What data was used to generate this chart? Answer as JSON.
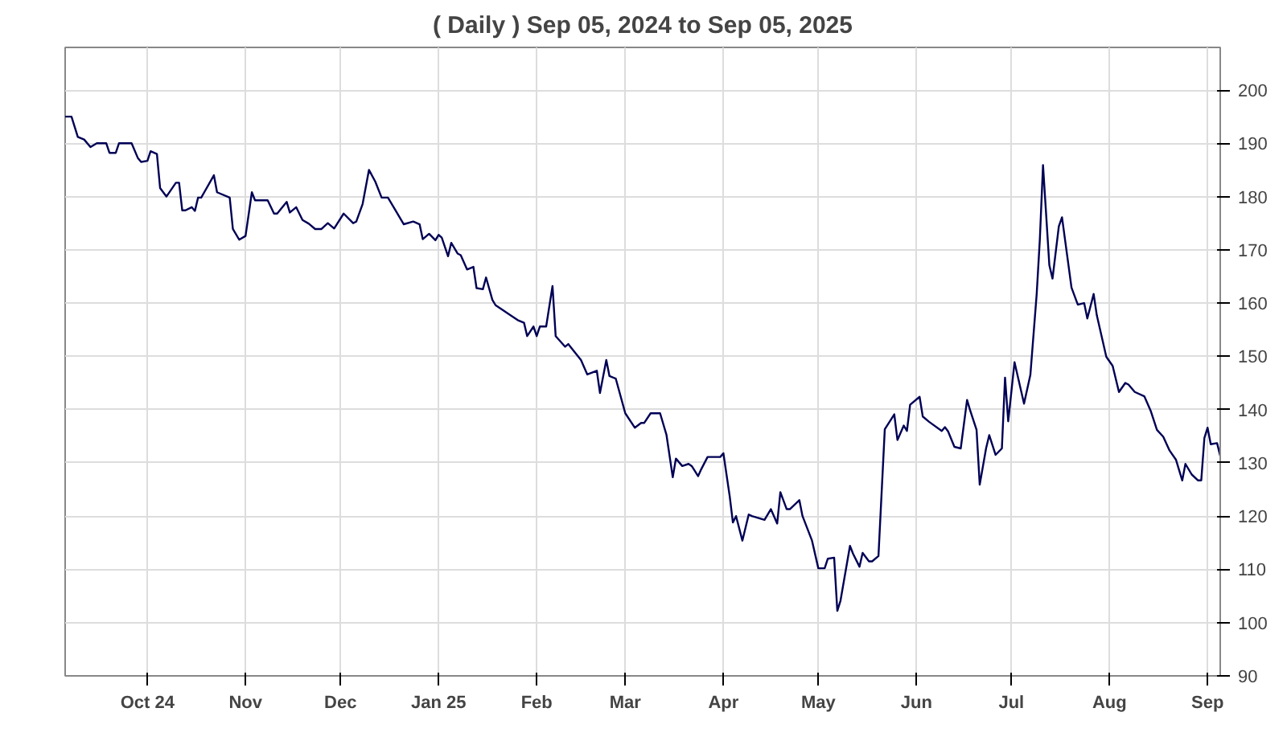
{
  "chart_data": {
    "type": "line",
    "title": "( Daily ) Sep 05, 2024 to Sep 05, 2025",
    "x": [
      "2024-09-05",
      "2024-09-07",
      "2024-09-09",
      "2024-09-11",
      "2024-09-13",
      "2024-09-15",
      "2024-09-18",
      "2024-09-19",
      "2024-09-21",
      "2024-09-22",
      "2024-09-26",
      "2024-09-28",
      "2024-09-29",
      "2024-10-01",
      "2024-10-02",
      "2024-10-04",
      "2024-10-05",
      "2024-10-07",
      "2024-10-10",
      "2024-10-11",
      "2024-10-12",
      "2024-10-13",
      "2024-10-15",
      "2024-10-16",
      "2024-10-17",
      "2024-10-18",
      "2024-10-22",
      "2024-10-23",
      "2024-10-27",
      "2024-10-28",
      "2024-10-30",
      "2024-11-01",
      "2024-11-03",
      "2024-11-04",
      "2024-11-08",
      "2024-11-10",
      "2024-11-11",
      "2024-11-14",
      "2024-11-15",
      "2024-11-17",
      "2024-11-19",
      "2024-11-21",
      "2024-11-23",
      "2024-11-25",
      "2024-11-27",
      "2024-11-29",
      "2024-12-02",
      "2024-12-05",
      "2024-12-06",
      "2024-12-08",
      "2024-12-10",
      "2024-12-12",
      "2024-12-14",
      "2024-12-16",
      "2024-12-18",
      "2024-12-21",
      "2024-12-24",
      "2024-12-26",
      "2024-12-27",
      "2024-12-29",
      "2024-12-31",
      "2025-01-01",
      "2025-01-02",
      "2025-01-04",
      "2025-01-05",
      "2025-01-07",
      "2025-01-08",
      "2025-01-10",
      "2025-01-12",
      "2025-01-13",
      "2025-01-15",
      "2025-01-16",
      "2025-01-18",
      "2025-01-19",
      "2025-01-24",
      "2025-01-26",
      "2025-01-28",
      "2025-01-29",
      "2025-01-31",
      "2025-02-01",
      "2025-02-02",
      "2025-02-04",
      "2025-02-06",
      "2025-02-07",
      "2025-02-10",
      "2025-02-11",
      "2025-02-15",
      "2025-02-17",
      "2025-02-20",
      "2025-02-21",
      "2025-02-23",
      "2025-02-24",
      "2025-02-26",
      "2025-03-01",
      "2025-03-04",
      "2025-03-06",
      "2025-03-07",
      "2025-03-09",
      "2025-03-12",
      "2025-03-14",
      "2025-03-16",
      "2025-03-17",
      "2025-03-19",
      "2025-03-21",
      "2025-03-22",
      "2025-03-24",
      "2025-03-25",
      "2025-03-27",
      "2025-03-31",
      "2025-04-01",
      "2025-04-03",
      "2025-04-04",
      "2025-04-05",
      "2025-04-07",
      "2025-04-09",
      "2025-04-10",
      "2025-04-14",
      "2025-04-16",
      "2025-04-18",
      "2025-04-19",
      "2025-04-21",
      "2025-04-22",
      "2025-04-25",
      "2025-04-26",
      "2025-04-29",
      "2025-05-01",
      "2025-05-03",
      "2025-05-04",
      "2025-05-06",
      "2025-05-07",
      "2025-05-08",
      "2025-05-11",
      "2025-05-12",
      "2025-05-14",
      "2025-05-15",
      "2025-05-17",
      "2025-05-18",
      "2025-05-20",
      "2025-05-22",
      "2025-05-25",
      "2025-05-26",
      "2025-05-28",
      "2025-05-29",
      "2025-05-30",
      "2025-06-02",
      "2025-06-03",
      "2025-06-05",
      "2025-06-09",
      "2025-06-10",
      "2025-06-11",
      "2025-06-13",
      "2025-06-15",
      "2025-06-17",
      "2025-06-18",
      "2025-06-20",
      "2025-06-21",
      "2025-06-23",
      "2025-06-24",
      "2025-06-26",
      "2025-06-28",
      "2025-06-29",
      "2025-06-30",
      "2025-07-02",
      "2025-07-05",
      "2025-07-07",
      "2025-07-09",
      "2025-07-10",
      "2025-07-11",
      "2025-07-13",
      "2025-07-14",
      "2025-07-16",
      "2025-07-17",
      "2025-07-20",
      "2025-07-22",
      "2025-07-24",
      "2025-07-25",
      "2025-07-27",
      "2025-07-28",
      "2025-07-31",
      "2025-08-02",
      "2025-08-04",
      "2025-08-06",
      "2025-08-07",
      "2025-08-09",
      "2025-08-12",
      "2025-08-14",
      "2025-08-16",
      "2025-08-18",
      "2025-08-20",
      "2025-08-22",
      "2025-08-24",
      "2025-08-25",
      "2025-08-27",
      "2025-08-29",
      "2025-08-30",
      "2025-08-31",
      "2025-09-01",
      "2025-09-02",
      "2025-09-04",
      "2025-09-05"
    ],
    "series": [
      {
        "color": "#000055",
        "values": [
          195,
          195,
          191.2,
          190.7,
          189.3,
          190,
          190,
          188.2,
          188.2,
          190,
          190,
          187.2,
          186.5,
          186.7,
          188.5,
          188,
          181.6,
          180,
          182.6,
          182.6,
          177.4,
          177.4,
          178,
          177.3,
          179.8,
          179.8,
          184,
          180.8,
          179.8,
          173.9,
          171.9,
          172.6,
          180.8,
          179.3,
          179.3,
          176.8,
          176.8,
          179,
          177,
          178,
          175.6,
          174.9,
          173.9,
          173.9,
          175,
          174,
          176.8,
          175,
          175.3,
          178.6,
          185,
          182.8,
          179.8,
          179.8,
          177.8,
          174.8,
          175.3,
          174.8,
          172,
          173,
          171.8,
          172.8,
          172.3,
          168.8,
          171.3,
          169.3,
          169,
          166.3,
          166.8,
          162.8,
          162.6,
          164.8,
          160.6,
          159.6,
          157.6,
          156.8,
          156.3,
          153.8,
          155.6,
          153.8,
          155.6,
          155.6,
          163.2,
          153.8,
          151.8,
          152.3,
          149.3,
          146.6,
          147.3,
          143.1,
          149.3,
          146.3,
          145.8,
          139.3,
          136.6,
          137.5,
          137.5,
          139.3,
          139.3,
          135.3,
          127.3,
          130.8,
          129.4,
          129.8,
          129.4,
          127.5,
          128.8,
          131.1,
          131.1,
          131.8,
          123.7,
          118.8,
          120,
          115.4,
          120.3,
          120,
          119.3,
          121.3,
          118.6,
          124.5,
          121.3,
          121.3,
          123,
          120,
          115.4,
          110.2,
          110.2,
          112,
          112.2,
          102.2,
          104.1,
          114.4,
          112.9,
          110.5,
          113.1,
          111.5,
          111.5,
          112.5,
          136.3,
          139.1,
          134.3,
          137,
          136,
          140.9,
          142.4,
          138.7,
          137.7,
          136,
          136.7,
          135.9,
          133,
          132.7,
          141.8,
          139.8,
          136.2,
          125.9,
          132.7,
          135.2,
          131.5,
          132.7,
          146,
          137.8,
          148.9,
          141.1,
          146.5,
          161.7,
          172,
          185.9,
          167.1,
          164.6,
          174.4,
          176.1,
          162.9,
          159.7,
          160,
          157.1,
          161.7,
          157.7,
          149.9,
          148.2,
          143.3,
          145,
          144.7,
          143.3,
          142.5,
          139.8,
          136.2,
          134.9,
          132.3,
          130.6,
          126.7,
          129.8,
          127.8,
          126.7,
          126.7,
          134.7,
          136.6,
          133.5,
          133.7,
          131.3
        ]
      }
    ],
    "xlim": [
      "2024-09-05",
      "2025-09-05"
    ],
    "xticks": [
      {
        "value": "2024-10-01",
        "label": "Oct 24"
      },
      {
        "value": "2024-11-01",
        "label": "Nov"
      },
      {
        "value": "2024-12-01",
        "label": "Dec"
      },
      {
        "value": "2025-01-01",
        "label": "Jan 25"
      },
      {
        "value": "2025-02-01",
        "label": "Feb"
      },
      {
        "value": "2025-03-01",
        "label": "Mar"
      },
      {
        "value": "2025-04-01",
        "label": "Apr"
      },
      {
        "value": "2025-05-01",
        "label": "May"
      },
      {
        "value": "2025-06-01",
        "label": "Jun"
      },
      {
        "value": "2025-07-01",
        "label": "Jul"
      },
      {
        "value": "2025-08-01",
        "label": "Aug"
      },
      {
        "value": "2025-09-01",
        "label": "Sep"
      }
    ],
    "ylim": [
      90,
      208
    ],
    "yticks": [
      90,
      100,
      110,
      120,
      130,
      140,
      150,
      160,
      170,
      180,
      190,
      200
    ],
    "grid": true
  }
}
